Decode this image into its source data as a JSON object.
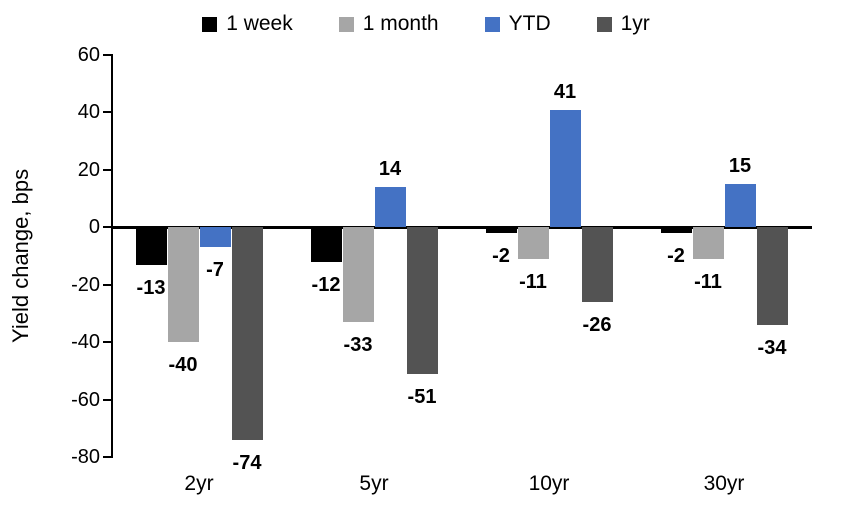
{
  "chart_data": {
    "type": "bar",
    "title": "",
    "xlabel": "",
    "ylabel": "Yield change, bps",
    "ylim": [
      -80,
      60
    ],
    "yticks": [
      60,
      40,
      20,
      0,
      -20,
      -40,
      -60,
      -80
    ],
    "grid": false,
    "legend_position": "top",
    "categories": [
      "2yr",
      "5yr",
      "10yr",
      "30yr"
    ],
    "series": [
      {
        "name": "1 week",
        "color": "#000000",
        "values": [
          -13,
          -12,
          -2,
          -2
        ]
      },
      {
        "name": "1 month",
        "color": "#A6A6A6",
        "values": [
          -40,
          -33,
          -11,
          -11
        ]
      },
      {
        "name": "YTD",
        "color": "#4472C4",
        "values": [
          -7,
          14,
          41,
          15
        ]
      },
      {
        "name": "1yr",
        "color": "#535353",
        "values": [
          -74,
          -51,
          -26,
          -34
        ]
      }
    ]
  }
}
